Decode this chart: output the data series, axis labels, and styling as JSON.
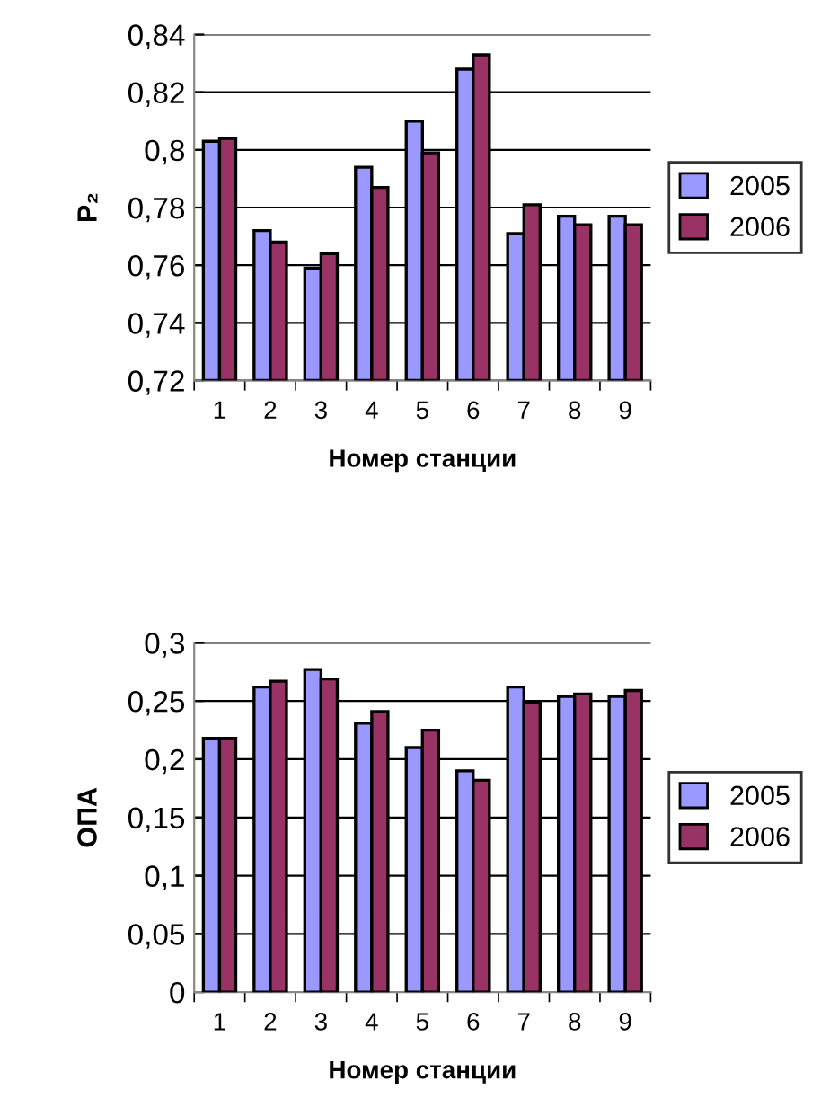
{
  "chart_data": [
    {
      "type": "bar",
      "categories": [
        "1",
        "2",
        "3",
        "4",
        "5",
        "6",
        "7",
        "8",
        "9"
      ],
      "xlabel": "Номер станции",
      "ylabel": "P₂",
      "ylim": [
        0.72,
        0.84
      ],
      "yticks": [
        {
          "value": 0.72,
          "label": "0,72"
        },
        {
          "value": 0.74,
          "label": "0,74"
        },
        {
          "value": 0.76,
          "label": "0,76"
        },
        {
          "value": 0.78,
          "label": "0,78"
        },
        {
          "value": 0.8,
          "label": "0,8"
        },
        {
          "value": 0.82,
          "label": "0,82"
        },
        {
          "value": 0.84,
          "label": "0,84"
        }
      ],
      "grid": "y",
      "legend": "right",
      "series": [
        {
          "name": "2005",
          "color": "#9999ff",
          "values": [
            0.803,
            0.772,
            0.759,
            0.794,
            0.81,
            0.828,
            0.771,
            0.777,
            0.777
          ]
        },
        {
          "name": "2006",
          "color": "#993366",
          "values": [
            0.804,
            0.768,
            0.764,
            0.787,
            0.799,
            0.833,
            0.781,
            0.774,
            0.774
          ]
        }
      ]
    },
    {
      "type": "bar",
      "categories": [
        "1",
        "2",
        "3",
        "4",
        "5",
        "6",
        "7",
        "8",
        "9"
      ],
      "xlabel": "Номер станции",
      "ylabel": "ОПА",
      "ylim": [
        0,
        0.3
      ],
      "yticks": [
        0,
        {
          "value": 0.05,
          "label": "0,05"
        },
        {
          "value": 0.1,
          "label": "0,1"
        },
        {
          "value": 0.15,
          "label": "0,15"
        },
        {
          "value": 0.2,
          "label": "0,2"
        },
        {
          "value": 0.25,
          "label": "0,25"
        },
        {
          "value": 0.3,
          "label": "0,3"
        }
      ],
      "grid": "y",
      "legend": "right",
      "series": [
        {
          "name": "2005",
          "color": "#9999ff",
          "values": [
            0.218,
            0.262,
            0.277,
            0.231,
            0.21,
            0.19,
            0.262,
            0.254,
            0.254
          ]
        },
        {
          "name": "2006",
          "color": "#993366",
          "values": [
            0.218,
            0.267,
            0.269,
            0.241,
            0.225,
            0.182,
            0.249,
            0.256,
            0.259
          ]
        }
      ]
    }
  ]
}
